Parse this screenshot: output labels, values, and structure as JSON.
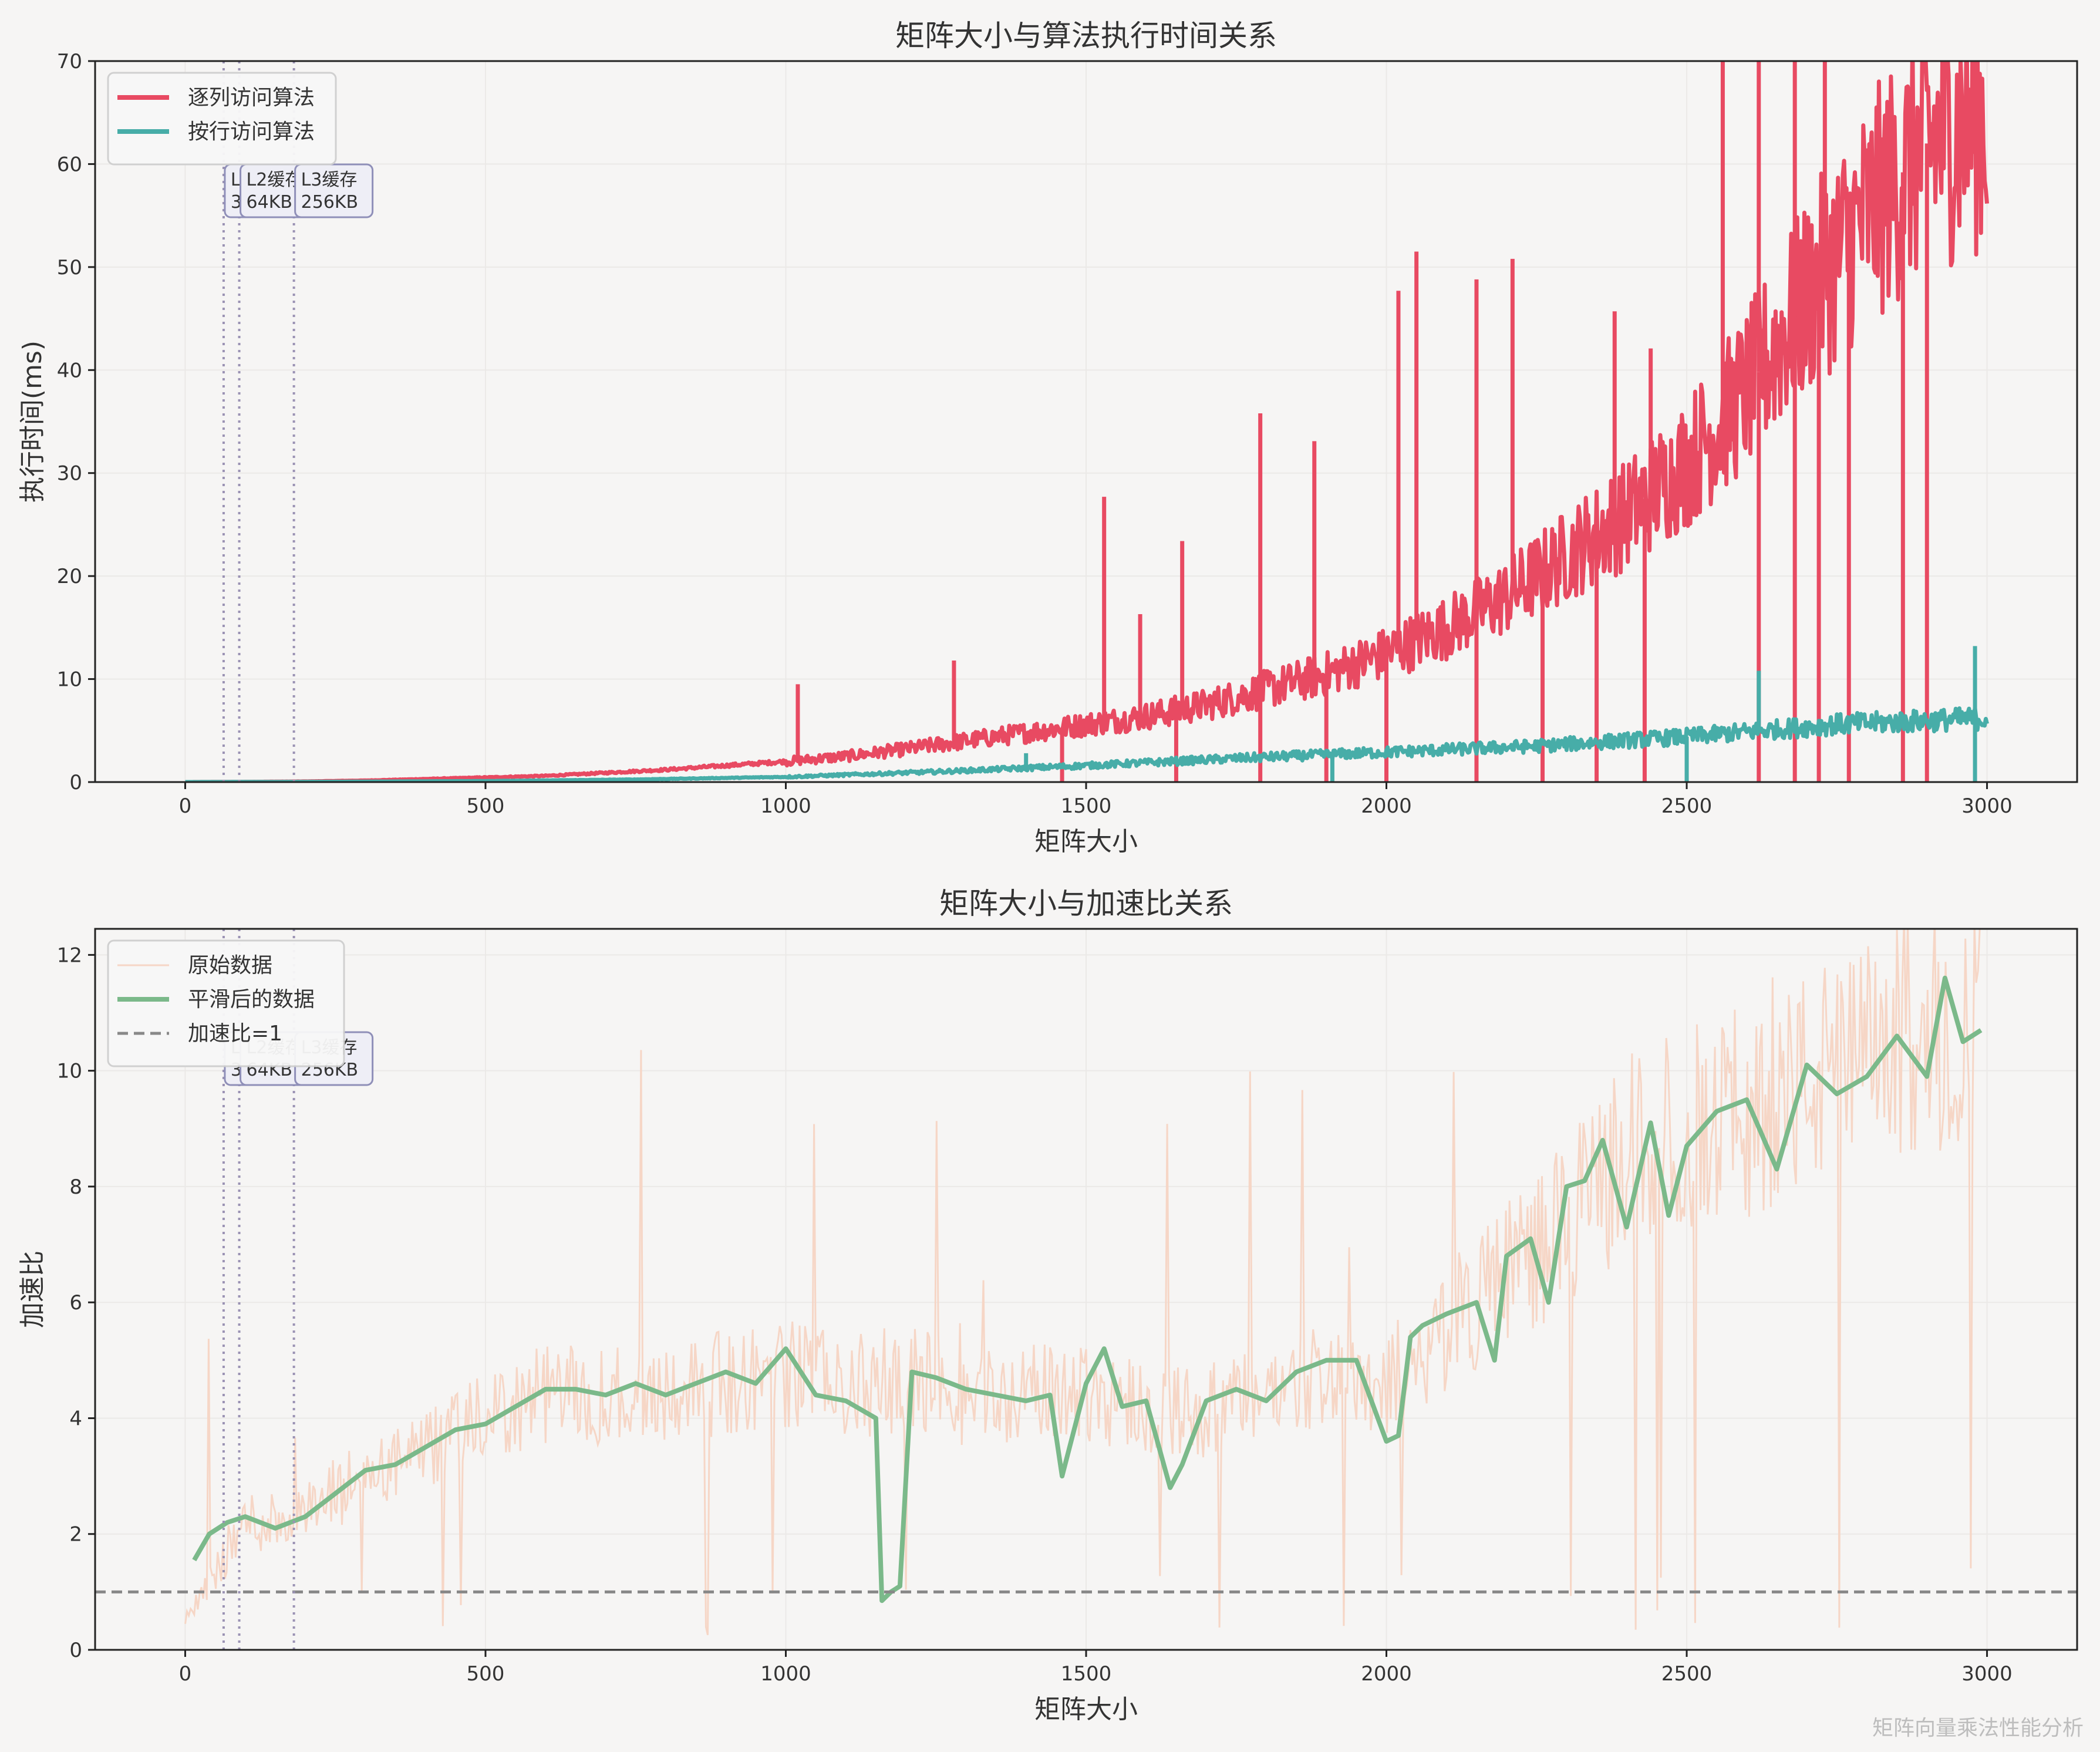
{
  "watermark": "矩阵向量乘法性能分析",
  "colors": {
    "background": "#f6f5f4",
    "col_series": "#e84a62",
    "row_series": "#47ada8",
    "raw_speedup": "#f6d6c6",
    "smooth_speedup": "#7bb98a",
    "ref_line": "#888888",
    "cache_line": "#9b93b4",
    "cache_box_fill": "#eeeef6",
    "cache_box_edge": "#8f8fb8",
    "grid": "#ebe9e7"
  },
  "chart_data": [
    {
      "type": "line",
      "title": "矩阵大小与算法执行时间关系",
      "xlabel": "矩阵大小",
      "ylabel": "执行时间(ms)",
      "xlim": [
        -150,
        3150
      ],
      "ylim": [
        0,
        70
      ],
      "xticks": [
        0,
        500,
        1000,
        1500,
        2000,
        2500,
        3000
      ],
      "yticks": [
        0,
        10,
        20,
        30,
        40,
        50,
        60,
        70
      ],
      "grid": true,
      "legend": "top-left",
      "series": [
        {
          "name": "逐列访问算法",
          "x": [
            0,
            100,
            200,
            300,
            400,
            500,
            600,
            700,
            800,
            900,
            1000,
            1100,
            1200,
            1300,
            1400,
            1500,
            1600,
            1700,
            1800,
            1900,
            2000,
            2100,
            2200,
            2300,
            2400,
            2500,
            2600,
            2700,
            2800,
            2900,
            3000
          ],
          "y": [
            0.0,
            0.02,
            0.06,
            0.15,
            0.3,
            0.45,
            0.6,
            0.9,
            1.2,
            1.6,
            2.0,
            2.5,
            3.2,
            4.0,
            4.8,
            5.6,
            6.4,
            7.5,
            9.0,
            10.5,
            12.5,
            15.0,
            18.0,
            22.0,
            26.0,
            31.0,
            38.0,
            47.0,
            55.0,
            62.0,
            65.0
          ],
          "spikes": [
            [
              1020,
              9.5
            ],
            [
              1280,
              11.8
            ],
            [
              1530,
              27.7
            ],
            [
              1590,
              16.3
            ],
            [
              1660,
              23.4
            ],
            [
              1790,
              35.8
            ],
            [
              1880,
              33.1
            ],
            [
              2020,
              47.7
            ],
            [
              2050,
              51.5
            ],
            [
              2150,
              48.8
            ],
            [
              2210,
              50.8
            ],
            [
              2380,
              45.7
            ],
            [
              2440,
              42.1
            ],
            [
              2560,
              70
            ],
            [
              2620,
              70
            ],
            [
              2680,
              70
            ],
            [
              2730,
              70
            ]
          ],
          "dips": [
            1460,
            1650,
            1790,
            1900,
            2000,
            2150,
            2260,
            2350,
            2430,
            2620,
            2680,
            2720,
            2770,
            2860,
            2900
          ]
        },
        {
          "name": "按行访问算法",
          "x": [
            0,
            250,
            500,
            750,
            1000,
            1250,
            1500,
            1750,
            2000,
            2250,
            2500,
            2750,
            3000
          ],
          "y": [
            0.0,
            0.03,
            0.1,
            0.25,
            0.5,
            1.0,
            1.6,
            2.3,
            2.9,
            3.5,
            4.4,
            5.6,
            6.2
          ],
          "spikes": [
            [
              1400,
              2.8
            ],
            [
              2620,
              10.8
            ],
            [
              2980,
              13.2
            ]
          ],
          "dips": [
            1910,
            2500,
            2980
          ]
        }
      ],
      "annotations": [
        {
          "x": 64,
          "label": "L1缓存",
          "sub": "32KB"
        },
        {
          "x": 90,
          "label": "L2缓存",
          "sub": "64KB"
        },
        {
          "x": 181,
          "label": "L3缓存",
          "sub": "256KB"
        }
      ]
    },
    {
      "type": "line",
      "title": "矩阵大小与加速比关系",
      "xlabel": "矩阵大小",
      "ylabel": "加速比",
      "xlim": [
        -150,
        3150
      ],
      "ylim": [
        0,
        12.45
      ],
      "xticks": [
        0,
        500,
        1000,
        1500,
        2000,
        2500,
        3000
      ],
      "yticks": [
        0,
        2,
        4,
        6,
        8,
        10,
        12
      ],
      "grid": true,
      "legend": "top-left",
      "series": [
        {
          "name": "原始数据",
          "x": [
            0,
            100,
            200,
            300,
            400,
            500,
            600,
            700,
            800,
            900,
            1000,
            1100,
            1200,
            1300,
            1400,
            1500,
            1600,
            1700,
            1800,
            1900,
            2000,
            2100,
            2200,
            2300,
            2400,
            2500,
            2600,
            2700,
            2800,
            2900,
            3000
          ],
          "y": [
            0.5,
            2.2,
            2.3,
            3.0,
            3.4,
            4.0,
            4.4,
            4.4,
            4.5,
            4.6,
            4.8,
            4.5,
            4.7,
            4.4,
            4.4,
            4.5,
            4.2,
            4.1,
            4.4,
            4.8,
            4.6,
            5.5,
            6.6,
            7.3,
            8.6,
            9.0,
            9.3,
            9.8,
            10.2,
            10.8,
            10.5
          ]
        },
        {
          "name": "平滑后的数据",
          "x": [
            15,
            40,
            70,
            100,
            150,
            200,
            250,
            300,
            350,
            400,
            450,
            500,
            550,
            600,
            650,
            700,
            750,
            800,
            850,
            900,
            950,
            1000,
            1050,
            1100,
            1150,
            1160,
            1175,
            1190,
            1210,
            1250,
            1300,
            1350,
            1400,
            1440,
            1460,
            1500,
            1530,
            1560,
            1600,
            1640,
            1660,
            1700,
            1750,
            1800,
            1850,
            1900,
            1950,
            2000,
            2020,
            2040,
            2060,
            2100,
            2150,
            2180,
            2200,
            2240,
            2270,
            2300,
            2330,
            2360,
            2400,
            2440,
            2470,
            2500,
            2550,
            2600,
            2650,
            2700,
            2750,
            2800,
            2850,
            2900,
            2930,
            2960,
            2990
          ],
          "y": [
            1.55,
            2.0,
            2.2,
            2.3,
            2.1,
            2.3,
            2.7,
            3.1,
            3.2,
            3.5,
            3.8,
            3.9,
            4.2,
            4.5,
            4.5,
            4.4,
            4.6,
            4.4,
            4.6,
            4.8,
            4.6,
            5.2,
            4.4,
            4.3,
            4.0,
            0.85,
            1.0,
            1.1,
            4.8,
            4.7,
            4.5,
            4.4,
            4.3,
            4.4,
            3.0,
            4.6,
            5.2,
            4.2,
            4.3,
            2.8,
            3.2,
            4.3,
            4.5,
            4.3,
            4.8,
            5.0,
            5.0,
            3.6,
            3.7,
            5.4,
            5.6,
            5.8,
            6.0,
            5.0,
            6.8,
            7.1,
            6.0,
            8.0,
            8.1,
            8.8,
            7.3,
            9.1,
            7.5,
            8.7,
            9.3,
            9.5,
            8.3,
            10.1,
            9.6,
            9.9,
            10.6,
            9.9,
            11.6,
            10.5,
            10.7
          ]
        },
        {
          "name": "加速比=1",
          "y": 1
        }
      ],
      "annotations": [
        {
          "x": 64,
          "label": "L1缓存",
          "sub": "32KB"
        },
        {
          "x": 90,
          "label": "L2缓存",
          "sub": "64KB"
        },
        {
          "x": 181,
          "label": "L3缓存",
          "sub": "256KB"
        }
      ]
    }
  ]
}
